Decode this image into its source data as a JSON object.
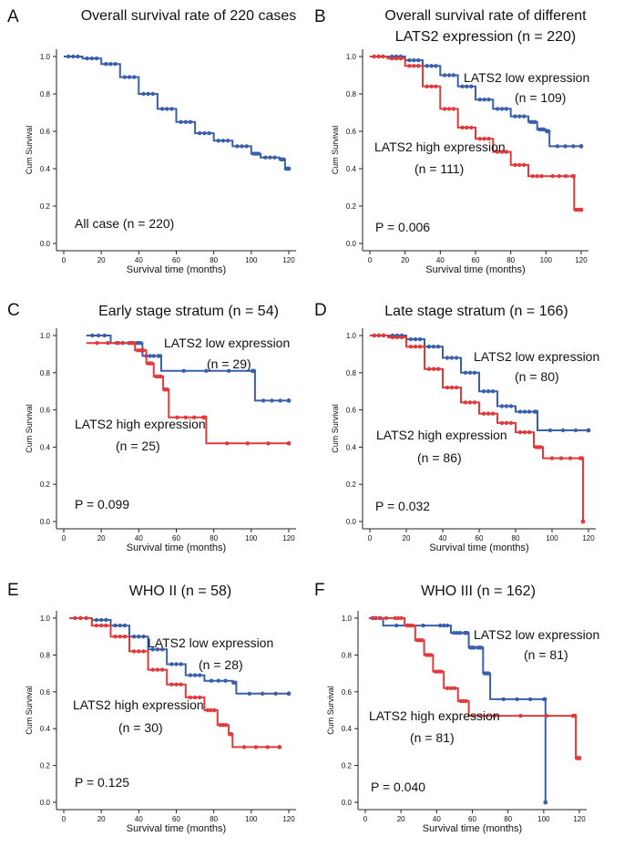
{
  "colors": {
    "low": "#3a5fab",
    "high": "#e03a3c",
    "axis": "#222222"
  },
  "chart_data": [
    {
      "type": "line",
      "panel": "A",
      "title": [
        "Overall survival rate of 220 cases"
      ],
      "xlabel": "Survival time (months)",
      "ylabel": "Cum Survival",
      "xlim": [
        0,
        120
      ],
      "ylim": [
        0,
        1
      ],
      "xticks": [
        "0",
        "20",
        "40",
        "60",
        "80",
        "100",
        "120"
      ],
      "yticks": [
        "0.0",
        "0.2",
        "0.4",
        "0.6",
        "0.8",
        "1.0"
      ],
      "p_text": "All case (n = 220)",
      "annotations": [],
      "series": [
        {
          "name": "All case",
          "color": "low",
          "points": [
            [
              0,
              1.0
            ],
            [
              10,
              0.99
            ],
            [
              20,
              0.96
            ],
            [
              30,
              0.89
            ],
            [
              40,
              0.8
            ],
            [
              50,
              0.72
            ],
            [
              60,
              0.65
            ],
            [
              70,
              0.59
            ],
            [
              80,
              0.55
            ],
            [
              90,
              0.52
            ],
            [
              100,
              0.48
            ],
            [
              105,
              0.46
            ],
            [
              115,
              0.45
            ],
            [
              118,
              0.4
            ],
            [
              120,
              0.4
            ]
          ]
        }
      ]
    },
    {
      "type": "line",
      "panel": "B",
      "title": [
        "Overall survival rate of different",
        "LATS2 expression (n = 220)"
      ],
      "xlabel": "Survival time (months)",
      "ylabel": "Cum Survival",
      "xlim": [
        0,
        120
      ],
      "ylim": [
        0,
        1
      ],
      "xticks": [
        "0",
        "20",
        "40",
        "60",
        "80",
        "100",
        "120"
      ],
      "yticks": [
        "0.0",
        "0.2",
        "0.4",
        "0.6",
        "0.8",
        "1.0"
      ],
      "p_text": "P = 0.006",
      "annotations": [
        "LATS2 low expression",
        "(n = 109)",
        "LATS2 high expression",
        "(n = 111)"
      ],
      "series": [
        {
          "name": "LATS2 low expression",
          "color": "low",
          "points": [
            [
              0,
              1.0
            ],
            [
              10,
              1.0
            ],
            [
              20,
              0.98
            ],
            [
              30,
              0.95
            ],
            [
              40,
              0.9
            ],
            [
              50,
              0.84
            ],
            [
              60,
              0.77
            ],
            [
              70,
              0.72
            ],
            [
              80,
              0.68
            ],
            [
              90,
              0.65
            ],
            [
              95,
              0.61
            ],
            [
              100,
              0.6
            ],
            [
              102,
              0.52
            ],
            [
              120,
              0.52
            ]
          ]
        },
        {
          "name": "LATS2 high expression",
          "color": "high",
          "points": [
            [
              0,
              1.0
            ],
            [
              10,
              0.99
            ],
            [
              20,
              0.95
            ],
            [
              30,
              0.84
            ],
            [
              40,
              0.72
            ],
            [
              50,
              0.62
            ],
            [
              60,
              0.56
            ],
            [
              70,
              0.49
            ],
            [
              80,
              0.42
            ],
            [
              90,
              0.36
            ],
            [
              100,
              0.36
            ],
            [
              115,
              0.36
            ],
            [
              116,
              0.18
            ],
            [
              120,
              0.18
            ]
          ]
        }
      ]
    },
    {
      "type": "line",
      "panel": "C",
      "title": [
        "Early stage stratum (n = 54)"
      ],
      "xlabel": "Survival time (months)",
      "ylabel": "Cum Survival",
      "xlim": [
        0,
        120
      ],
      "ylim": [
        0,
        1
      ],
      "xticks": [
        "0",
        "20",
        "40",
        "60",
        "80",
        "100",
        "120"
      ],
      "yticks": [
        "0.0",
        "0.2",
        "0.4",
        "0.6",
        "0.8",
        "1.0"
      ],
      "p_text": "P = 0.099",
      "annotations": [
        "LATS2 low expression",
        "(n = 29)",
        "LATS2 high expression",
        "(n = 25)"
      ],
      "series": [
        {
          "name": "LATS2 low expression",
          "color": "low",
          "points": [
            [
              12,
              1.0
            ],
            [
              25,
              0.96
            ],
            [
              38,
              0.96
            ],
            [
              42,
              0.89
            ],
            [
              50,
              0.89
            ],
            [
              52,
              0.81
            ],
            [
              100,
              0.81
            ],
            [
              102,
              0.65
            ],
            [
              120,
              0.65
            ]
          ]
        },
        {
          "name": "LATS2 high expression",
          "color": "high",
          "points": [
            [
              12,
              0.96
            ],
            [
              35,
              0.96
            ],
            [
              38,
              0.92
            ],
            [
              44,
              0.85
            ],
            [
              48,
              0.78
            ],
            [
              53,
              0.71
            ],
            [
              56,
              0.56
            ],
            [
              74,
              0.56
            ],
            [
              76,
              0.42
            ],
            [
              120,
              0.42
            ]
          ]
        }
      ]
    },
    {
      "type": "line",
      "panel": "D",
      "title": [
        "Late stage stratum (n = 166)"
      ],
      "xlabel": "Survival time (months)",
      "ylabel": "Cum Survival",
      "xlim": [
        0,
        120
      ],
      "ylim": [
        0,
        1
      ],
      "xticks": [
        "0",
        "20",
        "40",
        "60",
        "80",
        "100",
        "120"
      ],
      "yticks": [
        "0.0",
        "0.2",
        "0.4",
        "0.6",
        "0.8",
        "1.0"
      ],
      "p_text": "P = 0.032",
      "annotations": [
        "LATS2 low expression",
        "(n = 80)",
        "LATS2 high expression",
        "(n = 86)"
      ],
      "series": [
        {
          "name": "LATS2 low expression",
          "color": "low",
          "points": [
            [
              0,
              1.0
            ],
            [
              10,
              1.0
            ],
            [
              20,
              0.98
            ],
            [
              30,
              0.94
            ],
            [
              40,
              0.88
            ],
            [
              50,
              0.8
            ],
            [
              60,
              0.7
            ],
            [
              70,
              0.62
            ],
            [
              80,
              0.59
            ],
            [
              90,
              0.59
            ],
            [
              92,
              0.49
            ],
            [
              120,
              0.49
            ]
          ]
        },
        {
          "name": "LATS2 high expression",
          "color": "high",
          "points": [
            [
              0,
              1.0
            ],
            [
              10,
              0.99
            ],
            [
              20,
              0.94
            ],
            [
              30,
              0.82
            ],
            [
              40,
              0.72
            ],
            [
              50,
              0.64
            ],
            [
              60,
              0.58
            ],
            [
              70,
              0.53
            ],
            [
              80,
              0.48
            ],
            [
              90,
              0.4
            ],
            [
              95,
              0.34
            ],
            [
              115,
              0.34
            ],
            [
              117,
              0.0
            ]
          ]
        }
      ]
    },
    {
      "type": "line",
      "panel": "E",
      "title": [
        "WHO II (n = 58)"
      ],
      "xlabel": "Survival time (months)",
      "ylabel": "Cum Survival",
      "xlim": [
        0,
        120
      ],
      "ylim": [
        0,
        1
      ],
      "xticks": [
        "0",
        "20",
        "40",
        "60",
        "80",
        "100",
        "120"
      ],
      "yticks": [
        "0.0",
        "0.2",
        "0.4",
        "0.6",
        "0.8",
        "1.0"
      ],
      "p_text": "P = 0.125",
      "annotations": [
        "LATS2 low expression",
        "(n = 28)",
        "LATS2 high expression",
        "(n = 30)"
      ],
      "series": [
        {
          "name": "LATS2 low expression",
          "color": "low",
          "points": [
            [
              3,
              1.0
            ],
            [
              15,
              0.99
            ],
            [
              25,
              0.96
            ],
            [
              35,
              0.9
            ],
            [
              45,
              0.83
            ],
            [
              55,
              0.75
            ],
            [
              65,
              0.69
            ],
            [
              75,
              0.66
            ],
            [
              90,
              0.65
            ],
            [
              92,
              0.59
            ],
            [
              120,
              0.59
            ]
          ]
        },
        {
          "name": "LATS2 high expression",
          "color": "high",
          "points": [
            [
              3,
              1.0
            ],
            [
              15,
              0.96
            ],
            [
              25,
              0.9
            ],
            [
              35,
              0.82
            ],
            [
              45,
              0.72
            ],
            [
              55,
              0.64
            ],
            [
              65,
              0.57
            ],
            [
              75,
              0.5
            ],
            [
              82,
              0.42
            ],
            [
              88,
              0.37
            ],
            [
              90,
              0.3
            ],
            [
              115,
              0.3
            ]
          ]
        }
      ]
    },
    {
      "type": "line",
      "panel": "F",
      "title": [
        "WHO III (n = 162)"
      ],
      "xlabel": "Survival time (months)",
      "ylabel": "Cum Survival",
      "xlim": [
        0,
        120
      ],
      "ylim": [
        0,
        1
      ],
      "xticks": [
        "0",
        "20",
        "40",
        "60",
        "80",
        "100",
        "120"
      ],
      "yticks": [
        "0.0",
        "0.2",
        "0.4",
        "0.6",
        "0.8",
        "1.0"
      ],
      "p_text": "P = 0.040",
      "annotations": [
        "LATS2 low expression",
        "(n = 81)",
        "LATS2 high expression",
        "(n = 81)"
      ],
      "series": [
        {
          "name": "LATS2 low expression",
          "color": "low",
          "points": [
            [
              2,
              1.0
            ],
            [
              10,
              0.96
            ],
            [
              40,
              0.96
            ],
            [
              48,
              0.92
            ],
            [
              55,
              0.92
            ],
            [
              58,
              0.84
            ],
            [
              62,
              0.84
            ],
            [
              66,
              0.7
            ],
            [
              70,
              0.56
            ],
            [
              100,
              0.56
            ],
            [
              101,
              0.0
            ]
          ]
        },
        {
          "name": "LATS2 high expression",
          "color": "high",
          "points": [
            [
              2,
              1.0
            ],
            [
              15,
              1.0
            ],
            [
              22,
              0.96
            ],
            [
              28,
              0.88
            ],
            [
              33,
              0.8
            ],
            [
              38,
              0.71
            ],
            [
              44,
              0.62
            ],
            [
              52,
              0.55
            ],
            [
              58,
              0.47
            ],
            [
              116,
              0.47
            ],
            [
              118,
              0.24
            ],
            [
              120,
              0.24
            ]
          ]
        }
      ]
    }
  ]
}
